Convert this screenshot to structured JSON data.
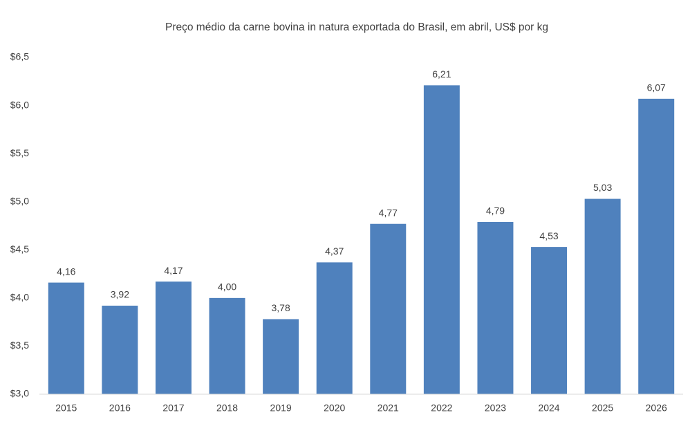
{
  "chart_data": {
    "type": "bar",
    "title": "Preço médio da carne bovina in natura exportada do Brasil, em abril, US$ por kg",
    "categories": [
      "2015",
      "2016",
      "2017",
      "2018",
      "2019",
      "2020",
      "2021",
      "2022",
      "2023",
      "2024",
      "2025",
      "2026"
    ],
    "values": [
      4.16,
      3.92,
      4.17,
      4.0,
      3.78,
      4.37,
      4.77,
      6.21,
      4.79,
      4.53,
      5.03,
      6.07
    ],
    "value_labels": [
      "4,16",
      "3,92",
      "4,17",
      "4,00",
      "3,78",
      "4,37",
      "4,77",
      "6,21",
      "4,79",
      "4,53",
      "5,03",
      "6,07"
    ],
    "color": "#4f81bd",
    "ylim": [
      3.0,
      6.5
    ],
    "yticks": [
      {
        "value": 3.0,
        "label": "$3,0"
      },
      {
        "value": 3.5,
        "label": "$3,5"
      },
      {
        "value": 4.0,
        "label": "$4,0"
      },
      {
        "value": 4.5,
        "label": "$4,5"
      },
      {
        "value": 5.0,
        "label": "$5,0"
      },
      {
        "value": 5.5,
        "label": "$5,5"
      },
      {
        "value": 6.0,
        "label": "$6,0"
      },
      {
        "value": 6.5,
        "label": "$6,5"
      }
    ],
    "grid": false
  }
}
